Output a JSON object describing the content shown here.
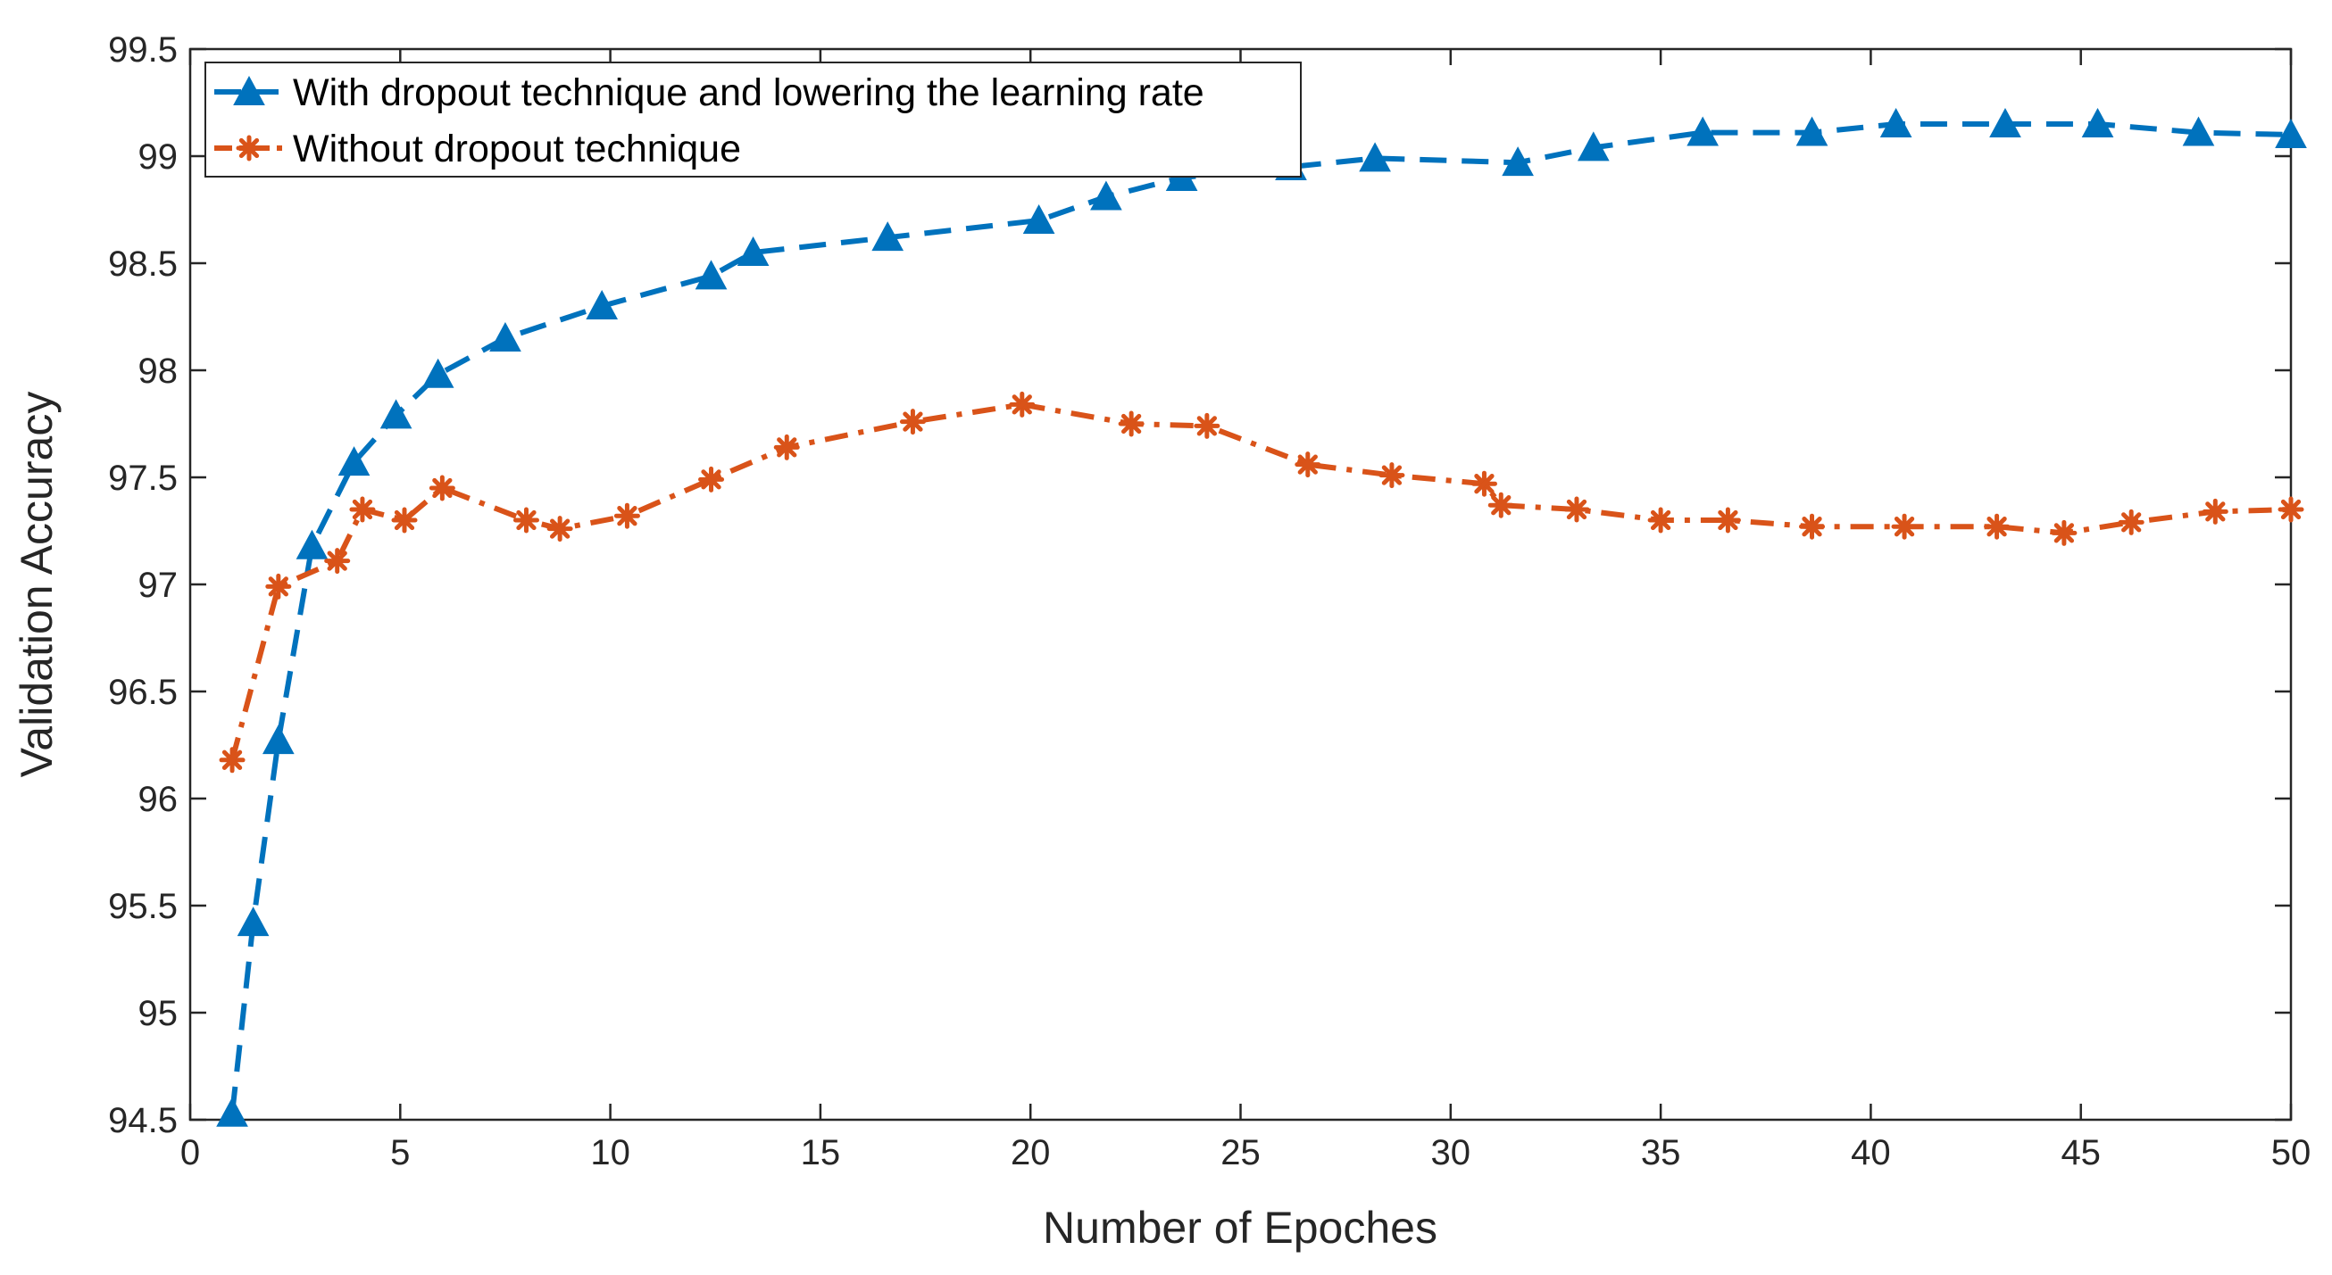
{
  "chart_data": {
    "type": "line",
    "title": "",
    "xlabel": "Number of Epoches",
    "ylabel": "Validation Accuracy",
    "xlim": [
      0,
      50
    ],
    "ylim": [
      94.5,
      99.5
    ],
    "xticks": [
      0,
      5,
      10,
      15,
      20,
      25,
      30,
      35,
      40,
      45,
      50
    ],
    "xtick_labels": [
      "0",
      "5",
      "10",
      "15",
      "20",
      "25",
      "30",
      "35",
      "40",
      "45",
      "50"
    ],
    "yticks": [
      94.5,
      95,
      95.5,
      96,
      96.5,
      97,
      97.5,
      98,
      98.5,
      99,
      99.5
    ],
    "ytick_labels": [
      "94.5",
      "95",
      "95.5",
      "96",
      "96.5",
      "97",
      "97.5",
      "98",
      "98.5",
      "99",
      "99.5"
    ],
    "grid": false,
    "legend_position": "top-left",
    "series": [
      {
        "name": "With dropout technique and lowering the learning rate",
        "color": "#0072BD",
        "line_style": "dashed",
        "marker": "triangle",
        "x": [
          1,
          1.5,
          2.1,
          2.9,
          3.9,
          4.9,
          5.9,
          7.5,
          9.8,
          12.4,
          13.4,
          16.6,
          20.2,
          21.8,
          23.6,
          26.2,
          28.2,
          31.6,
          33.4,
          36,
          38.6,
          40.6,
          43.2,
          45.4,
          47.8,
          50
        ],
        "y": [
          94.53,
          95.42,
          96.27,
          97.18,
          97.57,
          97.79,
          97.98,
          98.15,
          98.3,
          98.44,
          98.55,
          98.62,
          98.7,
          98.81,
          98.9,
          98.95,
          98.99,
          98.97,
          99.04,
          99.11,
          99.11,
          99.15,
          99.15,
          99.15,
          99.11,
          99.1
        ]
      },
      {
        "name": "Without dropout technique",
        "color": "#D95319",
        "line_style": "dashdot",
        "marker": "asterisk",
        "x": [
          1,
          2.1,
          3.5,
          4.1,
          5.1,
          6,
          8,
          8.8,
          10.4,
          12.4,
          14.2,
          17.2,
          19.8,
          22.4,
          24.2,
          26.6,
          28.6,
          30.8,
          31.2,
          33,
          35,
          36.6,
          38.6,
          40.8,
          43,
          44.6,
          46.2,
          48.2,
          50
        ],
        "y": [
          96.18,
          96.99,
          97.11,
          97.35,
          97.3,
          97.45,
          97.3,
          97.26,
          97.32,
          97.49,
          97.64,
          97.76,
          97.84,
          97.75,
          97.74,
          97.56,
          97.51,
          97.47,
          97.37,
          97.35,
          97.3,
          97.3,
          97.27,
          97.27,
          97.27,
          97.24,
          97.29,
          97.34,
          97.35
        ]
      }
    ]
  }
}
